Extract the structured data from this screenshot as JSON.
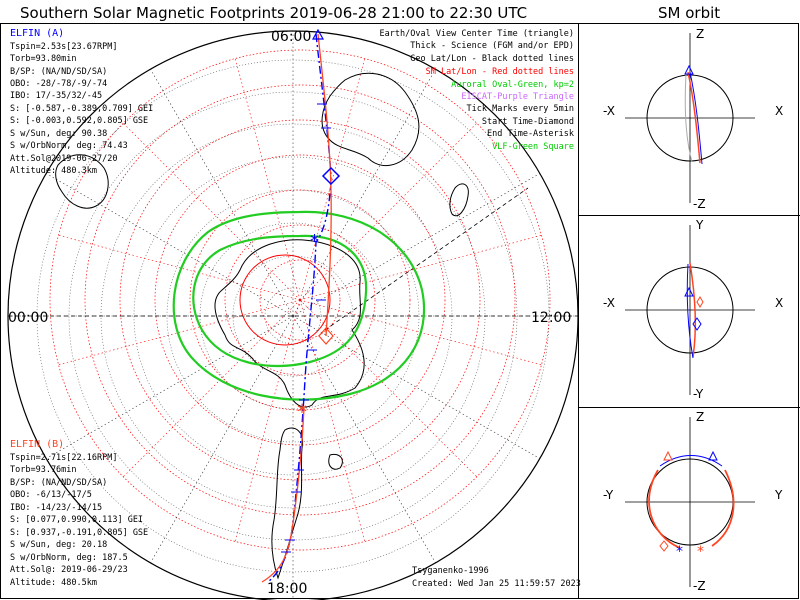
{
  "title": "Southern Solar Magnetic Footprints 2019-06-28 21:00 to 22:30 UTC",
  "orbit_title": "SM orbit",
  "polar_labels": {
    "top": "06:00",
    "left": "00:00",
    "right": "12:00",
    "bottom": "18:00"
  },
  "legend": [
    {
      "text": "Earth/Oval View Center Time (triangle)",
      "color": "#000000"
    },
    {
      "text": "Thick - Science (FGM and/or EPD)",
      "color": "#000000"
    },
    {
      "text": "Geo Lat/Lon - Black dotted lines",
      "color": "#000000"
    },
    {
      "text": "SM Lat/Lon - Red dotted lines",
      "color": "#ff0000"
    },
    {
      "text": "Auroral Oval-Green, kp=2",
      "color": "#00cc00"
    },
    {
      "text": "EISCAT-Purple Triangle",
      "color": "#cc66ff"
    },
    {
      "text": "Tick Marks every 5min",
      "color": "#000000"
    },
    {
      "text": "Start Time-Diamond",
      "color": "#000000"
    },
    {
      "text": "End Time-Asterisk",
      "color": "#000000"
    },
    {
      "text": "VLF-Green Square",
      "color": "#00cc00"
    }
  ],
  "probe_a": {
    "name": "ELFIN (A)",
    "color": "#0000ff",
    "lines": [
      "Tspin=2.53s[23.67RPM]",
      "Torb=93.80min",
      "B/SP: (NA/ND/SD/SA)",
      "OBO: -28/-78/-9/-74",
      "IBO: 17/-35/32/-45",
      "S: [-0.587,-0.389,0.709] GEI",
      "S: [-0.003,0.592,0.805] GSE",
      "S w/Sun, deg: 90.38",
      "S w/OrbNorm, deg: 74.43",
      "Att.Sol@2019-06-27/20",
      "Altitude: 480.3km"
    ]
  },
  "probe_b": {
    "name": "ELFIN (B)",
    "color": "#ff4422",
    "lines": [
      "Tspin=2.71s[22.16RPM]",
      "Torb=93.76min",
      "B/SP: (NA/ND/SD/SA)",
      "OBO: -6/13/-17/5",
      "IBO: -14/23/-14/15",
      "S: [0.077,0.990,0.113] GEI",
      "S: [0.937,-0.191,0.805] GSE",
      "S w/Sun, deg: 20.18",
      "S w/OrbNorm, deg: 187.5",
      "Att.Sol@: 2019-06-29/23",
      "Altitude: 480.5km"
    ]
  },
  "credit": "Tsyganenko-1996",
  "created": "Created: Wed Jan 25 11:59:57 2023",
  "panels": [
    {
      "top": "Z",
      "bottom": "-Z",
      "left": "-X",
      "right": "X"
    },
    {
      "top": "Y",
      "bottom": "-Y",
      "left": "-X",
      "right": "X"
    },
    {
      "top": "Z",
      "bottom": "-Z",
      "left": "-Y",
      "right": "Y"
    }
  ]
}
